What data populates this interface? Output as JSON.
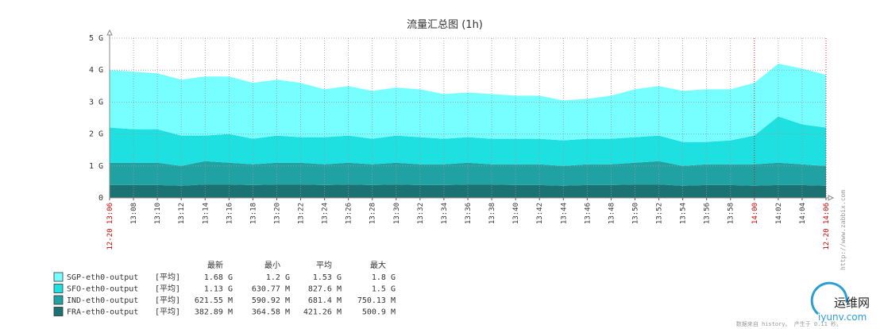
{
  "chart_data": {
    "type": "stacked_area",
    "title": "流量汇总图 (1h)",
    "x": [
      786,
      788,
      790,
      792,
      794,
      796,
      798,
      800,
      802,
      804,
      806,
      808,
      810,
      812,
      814,
      816,
      818,
      820,
      822,
      824,
      826,
      828,
      830,
      832,
      834,
      836,
      838,
      840,
      842,
      844,
      846
    ],
    "xlim": [
      786,
      846
    ],
    "xticks": [
      {
        "value": 786,
        "label": "12-20 13:06",
        "color": "#cc0000"
      },
      {
        "value": 788,
        "label": "13:08"
      },
      {
        "value": 790,
        "label": "13:10"
      },
      {
        "value": 792,
        "label": "13:12"
      },
      {
        "value": 794,
        "label": "13:14"
      },
      {
        "value": 796,
        "label": "13:16"
      },
      {
        "value": 798,
        "label": "13:18"
      },
      {
        "value": 800,
        "label": "13:20"
      },
      {
        "value": 802,
        "label": "13:22"
      },
      {
        "value": 804,
        "label": "13:24"
      },
      {
        "value": 806,
        "label": "13:26"
      },
      {
        "value": 808,
        "label": "13:28"
      },
      {
        "value": 810,
        "label": "13:30"
      },
      {
        "value": 812,
        "label": "13:32"
      },
      {
        "value": 814,
        "label": "13:34"
      },
      {
        "value": 816,
        "label": "13:36"
      },
      {
        "value": 818,
        "label": "13:38"
      },
      {
        "value": 820,
        "label": "13:40"
      },
      {
        "value": 822,
        "label": "13:42"
      },
      {
        "value": 824,
        "label": "13:44"
      },
      {
        "value": 826,
        "label": "13:46"
      },
      {
        "value": 828,
        "label": "13:48"
      },
      {
        "value": 830,
        "label": "13:50"
      },
      {
        "value": 832,
        "label": "13:52"
      },
      {
        "value": 834,
        "label": "13:54"
      },
      {
        "value": 836,
        "label": "13:56"
      },
      {
        "value": 838,
        "label": "13:58"
      },
      {
        "value": 840,
        "label": "14:00",
        "color": "#cc0000"
      },
      {
        "value": 842,
        "label": "14:02"
      },
      {
        "value": 844,
        "label": "14:04"
      },
      {
        "value": 846,
        "label": "12-20 14:06",
        "color": "#cc0000"
      }
    ],
    "ylim": [
      0,
      5
    ],
    "yticks": [
      0,
      {
        "value": 1,
        "label": "1 G"
      },
      {
        "value": 2,
        "label": "2 G"
      },
      {
        "value": 3,
        "label": "3 G"
      },
      {
        "value": 4,
        "label": "4 G"
      },
      {
        "value": 5,
        "label": "5 G"
      }
    ],
    "grid": true,
    "legend_headers": [
      "最新",
      "最小",
      "平均",
      "最大"
    ],
    "legend_function": "[平均]",
    "series": [
      {
        "name": "SGP-eth0-output",
        "color": "#77ffff",
        "stats": [
          "1.68 G",
          "1.2 G",
          "1.53 G",
          "1.8 G"
        ],
        "values": [
          1.8,
          1.8,
          1.75,
          1.75,
          1.85,
          1.8,
          1.75,
          1.75,
          1.7,
          1.5,
          1.55,
          1.5,
          1.5,
          1.5,
          1.4,
          1.4,
          1.4,
          1.35,
          1.35,
          1.25,
          1.25,
          1.35,
          1.5,
          1.55,
          1.6,
          1.65,
          1.6,
          1.65,
          1.65,
          1.75,
          1.65
        ]
      },
      {
        "name": "SFO-eth0-output",
        "color": "#1ee0e0",
        "stats": [
          "1.13 G",
          "630.77 M",
          "827.6 M",
          "1.5 G"
        ],
        "values": [
          1.1,
          1.05,
          1.05,
          0.95,
          0.8,
          0.9,
          0.8,
          0.85,
          0.8,
          0.85,
          0.85,
          0.8,
          0.85,
          0.85,
          0.8,
          0.8,
          0.8,
          0.8,
          0.8,
          0.8,
          0.8,
          0.8,
          0.8,
          0.8,
          0.75,
          0.7,
          0.75,
          0.9,
          1.45,
          1.25,
          1.2
        ]
      },
      {
        "name": "IND-eth0-output",
        "color": "#20a2a2",
        "stats": [
          "621.55 M",
          "590.92 M",
          "681.4 M",
          "750.13 M"
        ],
        "values": [
          0.7,
          0.7,
          0.7,
          0.62,
          0.73,
          0.68,
          0.65,
          0.68,
          0.68,
          0.65,
          0.68,
          0.65,
          0.68,
          0.65,
          0.65,
          0.68,
          0.63,
          0.65,
          0.65,
          0.62,
          0.65,
          0.65,
          0.68,
          0.73,
          0.62,
          0.65,
          0.65,
          0.67,
          0.7,
          0.65,
          0.62
        ]
      },
      {
        "name": "FRA-eth0-output",
        "color": "#1b7272",
        "stats": [
          "382.89 M",
          "364.58 M",
          "421.26 M",
          "500.9 M"
        ],
        "values": [
          0.4,
          0.4,
          0.4,
          0.38,
          0.42,
          0.42,
          0.4,
          0.42,
          0.42,
          0.4,
          0.42,
          0.4,
          0.42,
          0.4,
          0.4,
          0.42,
          0.42,
          0.4,
          0.4,
          0.38,
          0.4,
          0.4,
          0.42,
          0.42,
          0.38,
          0.4,
          0.4,
          0.38,
          0.4,
          0.4,
          0.38
        ]
      }
    ],
    "side_text": "http://www.zabbix.com",
    "footer": "数据来自 history。 产生于 0.11 秒。"
  },
  "watermark": {
    "name": "运维网",
    "url": "iyunv.com"
  }
}
